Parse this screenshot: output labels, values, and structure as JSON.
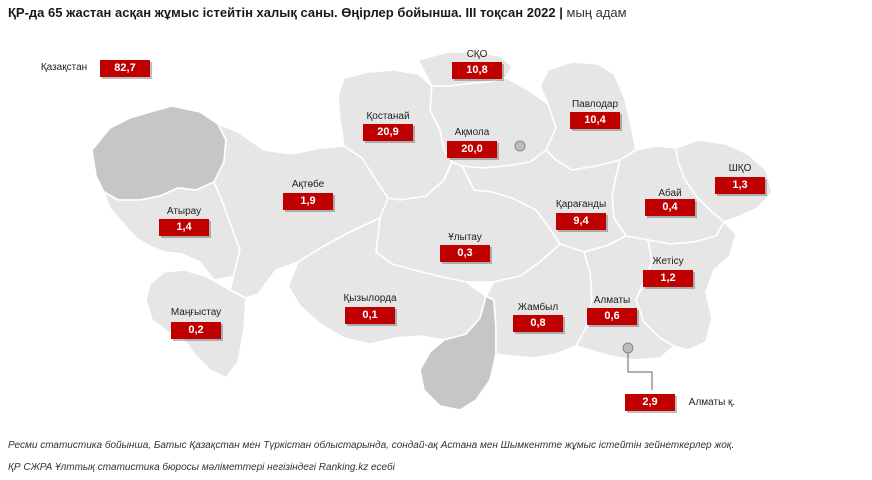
{
  "title": {
    "main": "ҚР-да 65 жастан асқан жұмыс істейтін халық саны. Өңірлер бойынша. III тоқсан 2022",
    "separator": " | ",
    "unit": "мың адам"
  },
  "colors": {
    "value_box": "#c00000",
    "region": "#e6e6e6",
    "region_no_data": "#c6c6c6"
  },
  "country": {
    "label": "Қазақстан",
    "value": "82,7"
  },
  "regions": [
    {
      "id": "sko",
      "label": "СҚО",
      "value": "10,8"
    },
    {
      "id": "kostanay",
      "label": "Қостанай",
      "value": "20,9"
    },
    {
      "id": "akmola",
      "label": "Ақмола",
      "value": "20,0"
    },
    {
      "id": "pavlodar",
      "label": "Павлодар",
      "value": "10,4"
    },
    {
      "id": "aktobe",
      "label": "Ақтөбе",
      "value": "1,9"
    },
    {
      "id": "atyrau",
      "label": "Атырау",
      "value": "1,4"
    },
    {
      "id": "vko",
      "label": "ШҚО",
      "value": "1,3"
    },
    {
      "id": "abai",
      "label": "Абай",
      "value": "0,4"
    },
    {
      "id": "karaganda",
      "label": "Қарағанды",
      "value": "9,4"
    },
    {
      "id": "ulytau",
      "label": "Ұлытау",
      "value": "0,3"
    },
    {
      "id": "zhetisu",
      "label": "Жетісу",
      "value": "1,2"
    },
    {
      "id": "kyzylorda",
      "label": "Қызылорда",
      "value": "0,1"
    },
    {
      "id": "mangystau",
      "label": "Маңғыстау",
      "value": "0,2"
    },
    {
      "id": "zhambyl",
      "label": "Жамбыл",
      "value": "0,8"
    },
    {
      "id": "almaty",
      "label": "Алматы",
      "value": "0,6"
    },
    {
      "id": "almaty_city",
      "label": "Алматы қ.",
      "value": "2,9"
    }
  ],
  "note": "Ресми статистика бойынша, Батыс Қазақстан мен Түркістан облыстарында, сондай-ақ Астана мен Шымкентте жұмыс істейтін зейнеткерлер жоқ.",
  "source": "ҚР СЖРА Ұлттық статистика бюросы мәліметтері негізіндегі Ranking.kz есебі"
}
